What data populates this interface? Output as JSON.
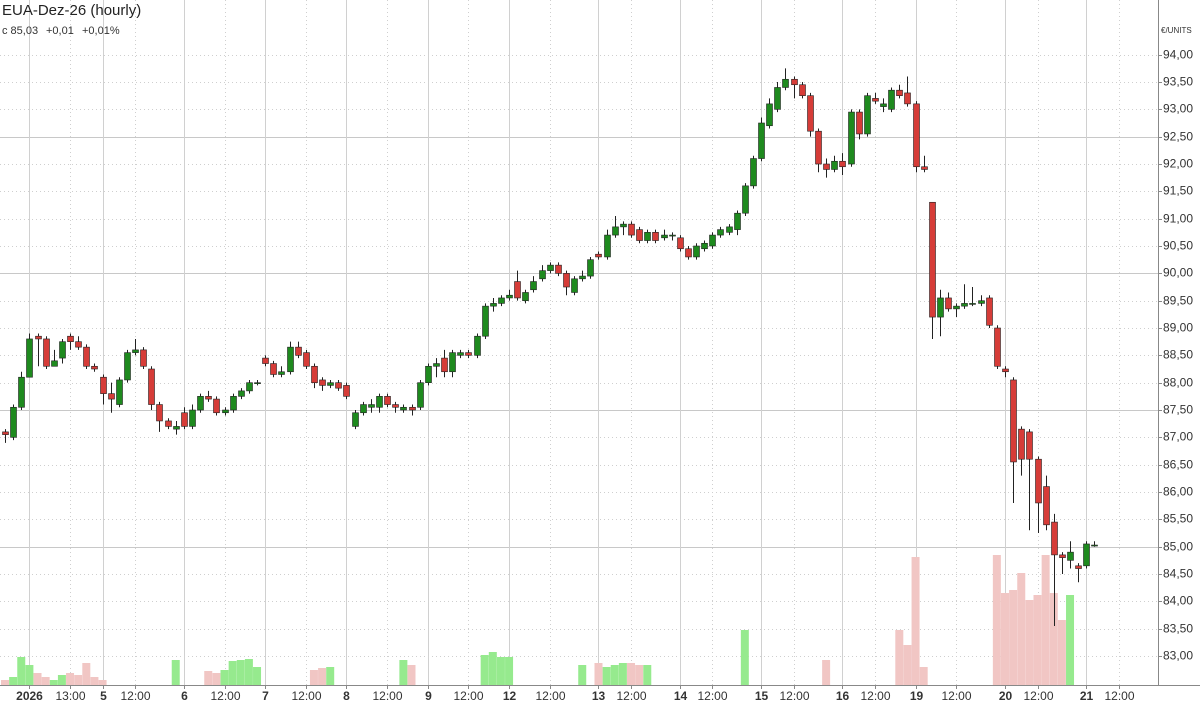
{
  "chart_data": {
    "type": "candlestick",
    "title": "EUA-Dez-26 (hourly)",
    "quote": {
      "close": "c 85,03",
      "change": "+0,01",
      "change_pct": "+0,01%"
    },
    "unit": "€/UNITS",
    "categories": [
      null,
      null,
      null,
      "2026",
      null,
      null,
      null,
      null,
      "13:00",
      null,
      null,
      null,
      "5",
      null,
      null,
      null,
      "12:00",
      null,
      null,
      null,
      null,
      null,
      "6",
      null,
      null,
      null,
      null,
      "12:00",
      null,
      null,
      null,
      null,
      "7",
      null,
      null,
      null,
      null,
      "12:00",
      null,
      null,
      null,
      null,
      "8",
      null,
      null,
      null,
      null,
      "12:00",
      null,
      null,
      null,
      null,
      "9",
      null,
      null,
      null,
      null,
      "12:00",
      null,
      null,
      null,
      null,
      "12",
      null,
      null,
      null,
      null,
      "12:00",
      null,
      null,
      null,
      null,
      null,
      "13",
      null,
      null,
      null,
      "12:00",
      null,
      null,
      null,
      null,
      null,
      "14",
      null,
      null,
      null,
      "12:00",
      null,
      null,
      null,
      null,
      null,
      "15",
      null,
      null,
      null,
      "12:00",
      null,
      null,
      null,
      null,
      null,
      "16",
      null,
      null,
      null,
      "12:00",
      null,
      null,
      null,
      null,
      "19",
      null,
      null,
      null,
      null,
      "12:00",
      null,
      null,
      null,
      null,
      null,
      "20",
      null,
      null,
      null,
      "12:00",
      null,
      null,
      null,
      null,
      null,
      "21",
      null,
      null,
      null,
      "12:00"
    ],
    "open": [
      87.1,
      87.0,
      87.55,
      88.1,
      88.85,
      88.8,
      88.3,
      88.45,
      88.85,
      88.75,
      88.65,
      88.3,
      88.1,
      87.8,
      87.6,
      88.05,
      88.55,
      88.6,
      88.25,
      87.6,
      87.3,
      87.15,
      87.45,
      87.2,
      87.5,
      87.75,
      87.7,
      87.45,
      87.5,
      87.75,
      87.85,
      88.0,
      88.45,
      88.35,
      88.15,
      88.2,
      88.65,
      88.55,
      88.3,
      88.05,
      87.95,
      88.0,
      87.95,
      87.2,
      87.45,
      87.55,
      87.55,
      87.75,
      87.6,
      87.5,
      87.55,
      87.55,
      88.0,
      88.3,
      88.45,
      88.2,
      88.5,
      88.55,
      88.5,
      88.85,
      89.4,
      89.45,
      89.55,
      89.85,
      89.5,
      89.7,
      89.9,
      90.05,
      90.15,
      90.0,
      89.65,
      89.9,
      89.95,
      90.35,
      90.3,
      90.7,
      90.85,
      90.9,
      90.8,
      90.6,
      90.75,
      90.65,
      90.7,
      90.65,
      90.45,
      90.3,
      90.45,
      90.5,
      90.7,
      90.75,
      90.8,
      91.1,
      91.6,
      92.1,
      92.7,
      93.0,
      93.4,
      93.55,
      93.45,
      93.25,
      92.6,
      92.0,
      91.9,
      92.05,
      92.0,
      92.95,
      92.55,
      93.2,
      93.05,
      93.0,
      93.35,
      93.3,
      93.1,
      91.95,
      91.3,
      89.2,
      89.55,
      89.35,
      89.4,
      89.45,
      89.45,
      89.55,
      89.0,
      88.25,
      88.05,
      87.15,
      87.1,
      86.6,
      86.1,
      85.45,
      84.85,
      84.75,
      84.65,
      84.65,
      85.03,
      null,
      null,
      null
    ],
    "high": [
      87.15,
      87.6,
      88.2,
      88.9,
      88.9,
      88.85,
      88.6,
      88.8,
      88.9,
      88.85,
      88.7,
      88.35,
      88.15,
      88.0,
      88.1,
      88.6,
      88.8,
      88.65,
      88.3,
      87.65,
      87.35,
      87.3,
      87.55,
      87.6,
      87.8,
      87.85,
      87.75,
      87.55,
      87.8,
      87.9,
      88.05,
      88.05,
      88.5,
      88.4,
      88.3,
      88.75,
      88.75,
      88.6,
      88.35,
      88.1,
      88.05,
      88.05,
      88.0,
      87.5,
      87.65,
      87.7,
      87.8,
      87.8,
      87.65,
      87.6,
      87.6,
      88.05,
      88.35,
      88.45,
      88.6,
      88.6,
      88.6,
      88.6,
      88.9,
      89.45,
      89.55,
      89.6,
      89.7,
      90.05,
      89.7,
      89.95,
      90.15,
      90.2,
      90.2,
      90.05,
      89.95,
      90.05,
      90.3,
      90.4,
      90.8,
      91.05,
      90.95,
      90.95,
      90.85,
      90.8,
      90.8,
      90.8,
      90.75,
      90.7,
      90.5,
      90.55,
      90.6,
      90.75,
      90.85,
      90.9,
      91.15,
      91.65,
      92.15,
      92.85,
      93.2,
      93.5,
      93.75,
      93.6,
      93.5,
      93.3,
      92.65,
      92.1,
      92.15,
      92.2,
      93.0,
      93.0,
      93.3,
      93.3,
      93.2,
      93.4,
      93.45,
      93.6,
      93.15,
      92.15,
      91.3,
      89.7,
      89.65,
      89.45,
      89.8,
      89.75,
      89.6,
      89.6,
      89.05,
      88.3,
      88.1,
      87.2,
      87.15,
      86.65,
      86.3,
      85.6,
      84.9,
      85.1,
      84.7,
      85.1,
      85.1,
      null,
      null,
      null
    ],
    "low": [
      86.9,
      86.95,
      87.5,
      88.1,
      88.3,
      88.25,
      88.3,
      88.35,
      88.6,
      88.6,
      88.25,
      88.2,
      87.6,
      87.45,
      87.55,
      88.0,
      88.5,
      88.25,
      87.5,
      87.1,
      87.15,
      87.05,
      87.15,
      87.15,
      87.45,
      87.65,
      87.4,
      87.4,
      87.45,
      87.7,
      87.8,
      87.95,
      88.3,
      88.1,
      88.1,
      88.15,
      88.45,
      88.25,
      87.9,
      87.85,
      87.9,
      87.85,
      87.7,
      87.15,
      87.4,
      87.45,
      87.45,
      87.55,
      87.45,
      87.45,
      87.4,
      87.5,
      87.95,
      88.1,
      88.1,
      88.1,
      88.45,
      88.45,
      88.45,
      88.8,
      89.3,
      89.4,
      89.5,
      89.5,
      89.45,
      89.65,
      89.85,
      90.0,
      89.95,
      89.6,
      89.6,
      89.85,
      89.9,
      90.25,
      90.25,
      90.65,
      90.7,
      90.65,
      90.55,
      90.55,
      90.55,
      90.6,
      90.6,
      90.4,
      90.25,
      90.25,
      90.4,
      90.45,
      90.65,
      90.7,
      90.7,
      91.05,
      91.55,
      92.05,
      92.65,
      92.95,
      93.35,
      93.2,
      93.2,
      92.5,
      91.85,
      91.75,
      91.85,
      91.8,
      91.95,
      92.45,
      92.5,
      93.1,
      92.95,
      92.95,
      93.2,
      93.05,
      91.85,
      91.85,
      88.8,
      88.85,
      89.3,
      89.2,
      89.35,
      89.4,
      89.4,
      89.0,
      88.25,
      88.1,
      85.8,
      86.3,
      85.3,
      85.25,
      85.3,
      83.55,
      84.5,
      84.6,
      84.35,
      84.6,
      85.0,
      null,
      null,
      null
    ],
    "close": [
      87.05,
      87.55,
      88.1,
      88.8,
      88.8,
      88.3,
      88.4,
      88.75,
      88.75,
      88.65,
      88.3,
      88.25,
      87.8,
      87.7,
      88.05,
      88.55,
      88.6,
      88.3,
      87.6,
      87.3,
      87.2,
      87.2,
      87.2,
      87.5,
      87.75,
      87.7,
      87.45,
      87.5,
      87.75,
      87.85,
      88.0,
      88.0,
      88.35,
      88.15,
      88.2,
      88.65,
      88.5,
      88.3,
      88.0,
      87.95,
      88.0,
      87.9,
      87.75,
      87.45,
      87.6,
      87.6,
      87.75,
      87.6,
      87.55,
      87.55,
      87.5,
      88.0,
      88.3,
      88.35,
      88.2,
      88.55,
      88.55,
      88.5,
      88.85,
      89.4,
      89.45,
      89.55,
      89.6,
      89.55,
      89.65,
      89.85,
      90.05,
      90.15,
      90.0,
      89.75,
      89.9,
      89.95,
      90.25,
      90.3,
      90.7,
      90.85,
      90.9,
      90.7,
      90.6,
      90.75,
      90.6,
      90.7,
      90.7,
      90.45,
      90.3,
      90.5,
      90.55,
      90.7,
      90.8,
      90.85,
      91.1,
      91.6,
      92.1,
      92.75,
      93.1,
      93.4,
      93.55,
      93.45,
      93.25,
      92.6,
      92.0,
      91.9,
      92.05,
      91.95,
      92.95,
      92.55,
      93.25,
      93.15,
      93.1,
      93.35,
      93.25,
      93.1,
      91.95,
      91.9,
      89.2,
      89.55,
      89.35,
      89.4,
      89.45,
      89.45,
      89.5,
      89.05,
      88.3,
      88.2,
      86.55,
      86.6,
      86.6,
      85.8,
      85.4,
      84.85,
      84.8,
      84.9,
      84.6,
      85.05,
      85.03,
      null,
      null,
      null
    ],
    "volume": [
      5,
      8,
      28,
      20,
      12,
      8,
      5,
      10,
      12,
      10,
      22,
      8,
      5,
      0,
      0,
      0,
      0,
      0,
      0,
      0,
      0,
      25,
      0,
      0,
      0,
      14,
      12,
      15,
      24,
      25,
      26,
      18,
      0,
      0,
      0,
      0,
      0,
      0,
      15,
      17,
      18,
      0,
      0,
      0,
      0,
      0,
      0,
      0,
      0,
      25,
      20,
      0,
      0,
      0,
      0,
      0,
      0,
      0,
      0,
      30,
      33,
      28,
      28,
      0,
      0,
      0,
      0,
      0,
      0,
      0,
      0,
      20,
      0,
      22,
      18,
      20,
      22,
      22,
      20,
      20,
      0,
      0,
      0,
      0,
      0,
      0,
      0,
      0,
      0,
      0,
      0,
      55,
      0,
      0,
      0,
      0,
      0,
      0,
      0,
      0,
      0,
      25,
      0,
      0,
      0,
      0,
      0,
      0,
      0,
      0,
      55,
      40,
      128,
      18,
      0,
      0,
      0,
      0,
      0,
      0,
      0,
      0,
      130,
      92,
      95,
      112,
      85,
      90,
      130,
      92,
      65,
      90,
      0,
      0,
      0,
      null,
      null,
      null
    ],
    "colors": {
      "up": "#1e8a1e",
      "down": "#d63c38",
      "volume_up": "#96ea8e",
      "volume_down": "#f1c6c4",
      "quote_up": "#2a9a2a"
    },
    "ylim": [
      82.47,
      95.0
    ],
    "yticks": [
      {
        "value": 83,
        "label": "83,00"
      },
      {
        "value": 83.5,
        "label": "83,50"
      },
      {
        "value": 84,
        "label": "84,00"
      },
      {
        "value": 84.5,
        "label": "84,50"
      },
      {
        "value": 85,
        "label": "85,00"
      },
      {
        "value": 85.5,
        "label": "85,50"
      },
      {
        "value": 86,
        "label": "86,00"
      },
      {
        "value": 86.5,
        "label": "86,50"
      },
      {
        "value": 87,
        "label": "87,00"
      },
      {
        "value": 87.5,
        "label": "87,50"
      },
      {
        "value": 88,
        "label": "88,00"
      },
      {
        "value": 88.5,
        "label": "88,50"
      },
      {
        "value": 89,
        "label": "89,00"
      },
      {
        "value": 89.5,
        "label": "89,50"
      },
      {
        "value": 90,
        "label": "90,00"
      },
      {
        "value": 90.5,
        "label": "90,50"
      },
      {
        "value": 91,
        "label": "91,00"
      },
      {
        "value": 91.5,
        "label": "91,50"
      },
      {
        "value": 92,
        "label": "92,00"
      },
      {
        "value": 92.5,
        "label": "92,50"
      },
      {
        "value": 93,
        "label": "93,00"
      },
      {
        "value": 93.5,
        "label": "93,50"
      },
      {
        "value": 94,
        "label": "94,00"
      }
    ],
    "grid": true
  }
}
